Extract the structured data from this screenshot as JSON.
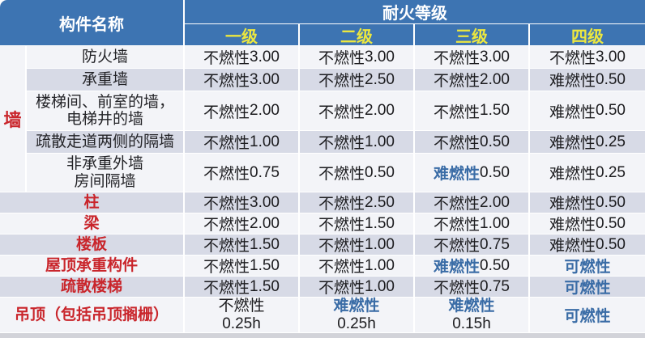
{
  "table": {
    "header": {
      "component_col": "构件名称",
      "rating_title": "耐火等级",
      "grades": [
        "一级",
        "二级",
        "三级",
        "四级"
      ]
    },
    "wall_group_label": "墙",
    "rows": [
      {
        "name": "防火墙",
        "cells": [
          {
            "mat": "不燃性",
            "dur": "3.00",
            "hl": false
          },
          {
            "mat": "不燃性",
            "dur": "3.00",
            "hl": false
          },
          {
            "mat": "不燃性",
            "dur": "3.00",
            "hl": false
          },
          {
            "mat": "不燃性",
            "dur": "3.00",
            "hl": false
          }
        ]
      },
      {
        "name": "承重墙",
        "cells": [
          {
            "mat": "不燃性",
            "dur": "3.00",
            "hl": false
          },
          {
            "mat": "不燃性",
            "dur": "2.50",
            "hl": false
          },
          {
            "mat": "不燃性",
            "dur": "2.00",
            "hl": false
          },
          {
            "mat": "难燃性",
            "dur": "0.50",
            "hl": false
          }
        ]
      },
      {
        "name_line1": "楼梯间、前室的墙，",
        "name_line2": "电梯井的墙",
        "cells": [
          {
            "mat": "不燃性",
            "dur": "2.00",
            "hl": false
          },
          {
            "mat": "不燃性",
            "dur": "2.00",
            "hl": false
          },
          {
            "mat": "不燃性",
            "dur": "1.50",
            "hl": false
          },
          {
            "mat": "难燃性",
            "dur": "0.50",
            "hl": false
          }
        ]
      },
      {
        "name": "疏散走道两侧的隔墙",
        "cells": [
          {
            "mat": "不燃性",
            "dur": "1.00",
            "hl": false
          },
          {
            "mat": "不燃性",
            "dur": "1.00",
            "hl": false
          },
          {
            "mat": "不燃性",
            "dur": "0.50",
            "hl": false
          },
          {
            "mat": "难燃性",
            "dur": "0.25",
            "hl": false
          }
        ]
      },
      {
        "name_line1": "非承重外墙",
        "name_line2": "房间隔墙",
        "cells": [
          {
            "mat": "不燃性",
            "dur": "0.75",
            "hl": false
          },
          {
            "mat": "不燃性",
            "dur": "0.50",
            "hl": false
          },
          {
            "mat": "难燃性",
            "dur": "0.50",
            "hl": true
          },
          {
            "mat": "难燃性",
            "dur": "0.25",
            "hl": false
          }
        ]
      },
      {
        "name": "柱",
        "cells": [
          {
            "mat": "不燃性",
            "dur": "3.00",
            "hl": false
          },
          {
            "mat": "不燃性",
            "dur": "2.50",
            "hl": false
          },
          {
            "mat": "不燃性",
            "dur": "2.00",
            "hl": false
          },
          {
            "mat": "难燃性",
            "dur": "0.50",
            "hl": false
          }
        ]
      },
      {
        "name": "梁",
        "cells": [
          {
            "mat": "不燃性",
            "dur": "2.00",
            "hl": false
          },
          {
            "mat": "不燃性",
            "dur": "1.50",
            "hl": false
          },
          {
            "mat": "不燃性",
            "dur": "1.00",
            "hl": false
          },
          {
            "mat": "难燃性",
            "dur": "0.50",
            "hl": false
          }
        ]
      },
      {
        "name": "楼板",
        "cells": [
          {
            "mat": "不燃性",
            "dur": "1.50",
            "hl": false
          },
          {
            "mat": "不燃性",
            "dur": "1.00",
            "hl": false
          },
          {
            "mat": "不燃性",
            "dur": "0.75",
            "hl": false
          },
          {
            "mat": "难燃性",
            "dur": "0.50",
            "hl": false
          }
        ]
      },
      {
        "name": "屋顶承重构件",
        "cells": [
          {
            "mat": "不燃性",
            "dur": "1.50",
            "hl": false
          },
          {
            "mat": "不燃性",
            "dur": "1.00",
            "hl": false
          },
          {
            "mat": "难燃性",
            "dur": "0.50",
            "hl": true
          },
          {
            "mat": "可燃性",
            "dur": "",
            "hl": true
          }
        ]
      },
      {
        "name": "疏散楼梯",
        "cells": [
          {
            "mat": "不燃性",
            "dur": "1.50",
            "hl": false
          },
          {
            "mat": "不燃性",
            "dur": "1.00",
            "hl": false
          },
          {
            "mat": "不燃性",
            "dur": "0.75",
            "hl": false
          },
          {
            "mat": "可燃性",
            "dur": "",
            "hl": true
          }
        ]
      },
      {
        "name": "吊顶（包括吊顶搁栅）",
        "cells": [
          {
            "mat": "不燃性",
            "dur": "0.25h",
            "hl": false
          },
          {
            "mat": "难燃性",
            "dur": "0.25h",
            "hl": true
          },
          {
            "mat": "难燃性",
            "dur": "0.15h",
            "hl": true
          },
          {
            "mat": "可燃性",
            "dur": "",
            "hl": true
          }
        ]
      }
    ]
  },
  "colors": {
    "header_bg": "#3d74b2",
    "header_text": "#ffffff",
    "grade_text": "#ece73f",
    "row_light": "#f3f4f8",
    "row_shaded": "#d7dae6",
    "group_label_red": "#c9252b",
    "highlight_blue": "#3a6ca6"
  }
}
